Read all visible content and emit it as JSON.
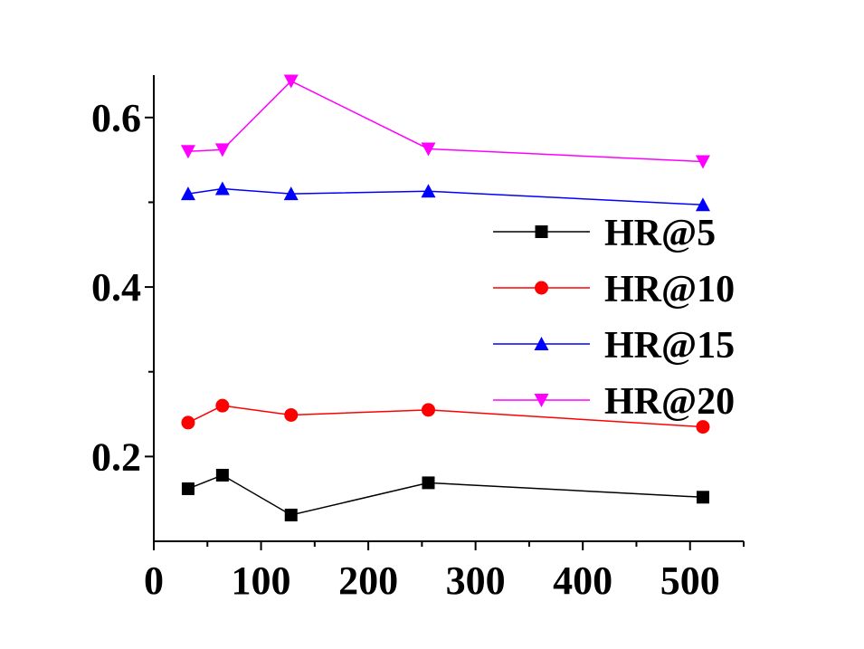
{
  "chart_data": {
    "type": "line",
    "title": "",
    "xlabel": "",
    "ylabel": "",
    "xlim": [
      0,
      550
    ],
    "ylim": [
      0.1,
      0.65
    ],
    "x": [
      32,
      64,
      128,
      256,
      512
    ],
    "x_ticks": [
      0,
      100,
      200,
      300,
      400,
      500
    ],
    "x_tick_labels": [
      "0",
      "100",
      "200",
      "300",
      "400",
      "500"
    ],
    "y_ticks": [
      0.2,
      0.4,
      0.6
    ],
    "y_tick_labels": [
      "0.2",
      "0.4",
      "0.6"
    ],
    "grid": false,
    "legend_position": "right",
    "series": [
      {
        "name": "HR@5",
        "color": "#000000",
        "marker": "square",
        "values": [
          0.162,
          0.178,
          0.131,
          0.169,
          0.152
        ]
      },
      {
        "name": "HR@10",
        "color": "#ff0000",
        "marker": "circle",
        "values": [
          0.24,
          0.26,
          0.249,
          0.255,
          0.235
        ]
      },
      {
        "name": "HR@15",
        "color": "#0000ff",
        "marker": "triangle-up",
        "values": [
          0.51,
          0.516,
          0.51,
          0.513,
          0.497
        ]
      },
      {
        "name": "HR@20",
        "color": "#ff00ff",
        "marker": "triangle-down",
        "values": [
          0.56,
          0.562,
          0.643,
          0.563,
          0.548
        ]
      }
    ]
  }
}
